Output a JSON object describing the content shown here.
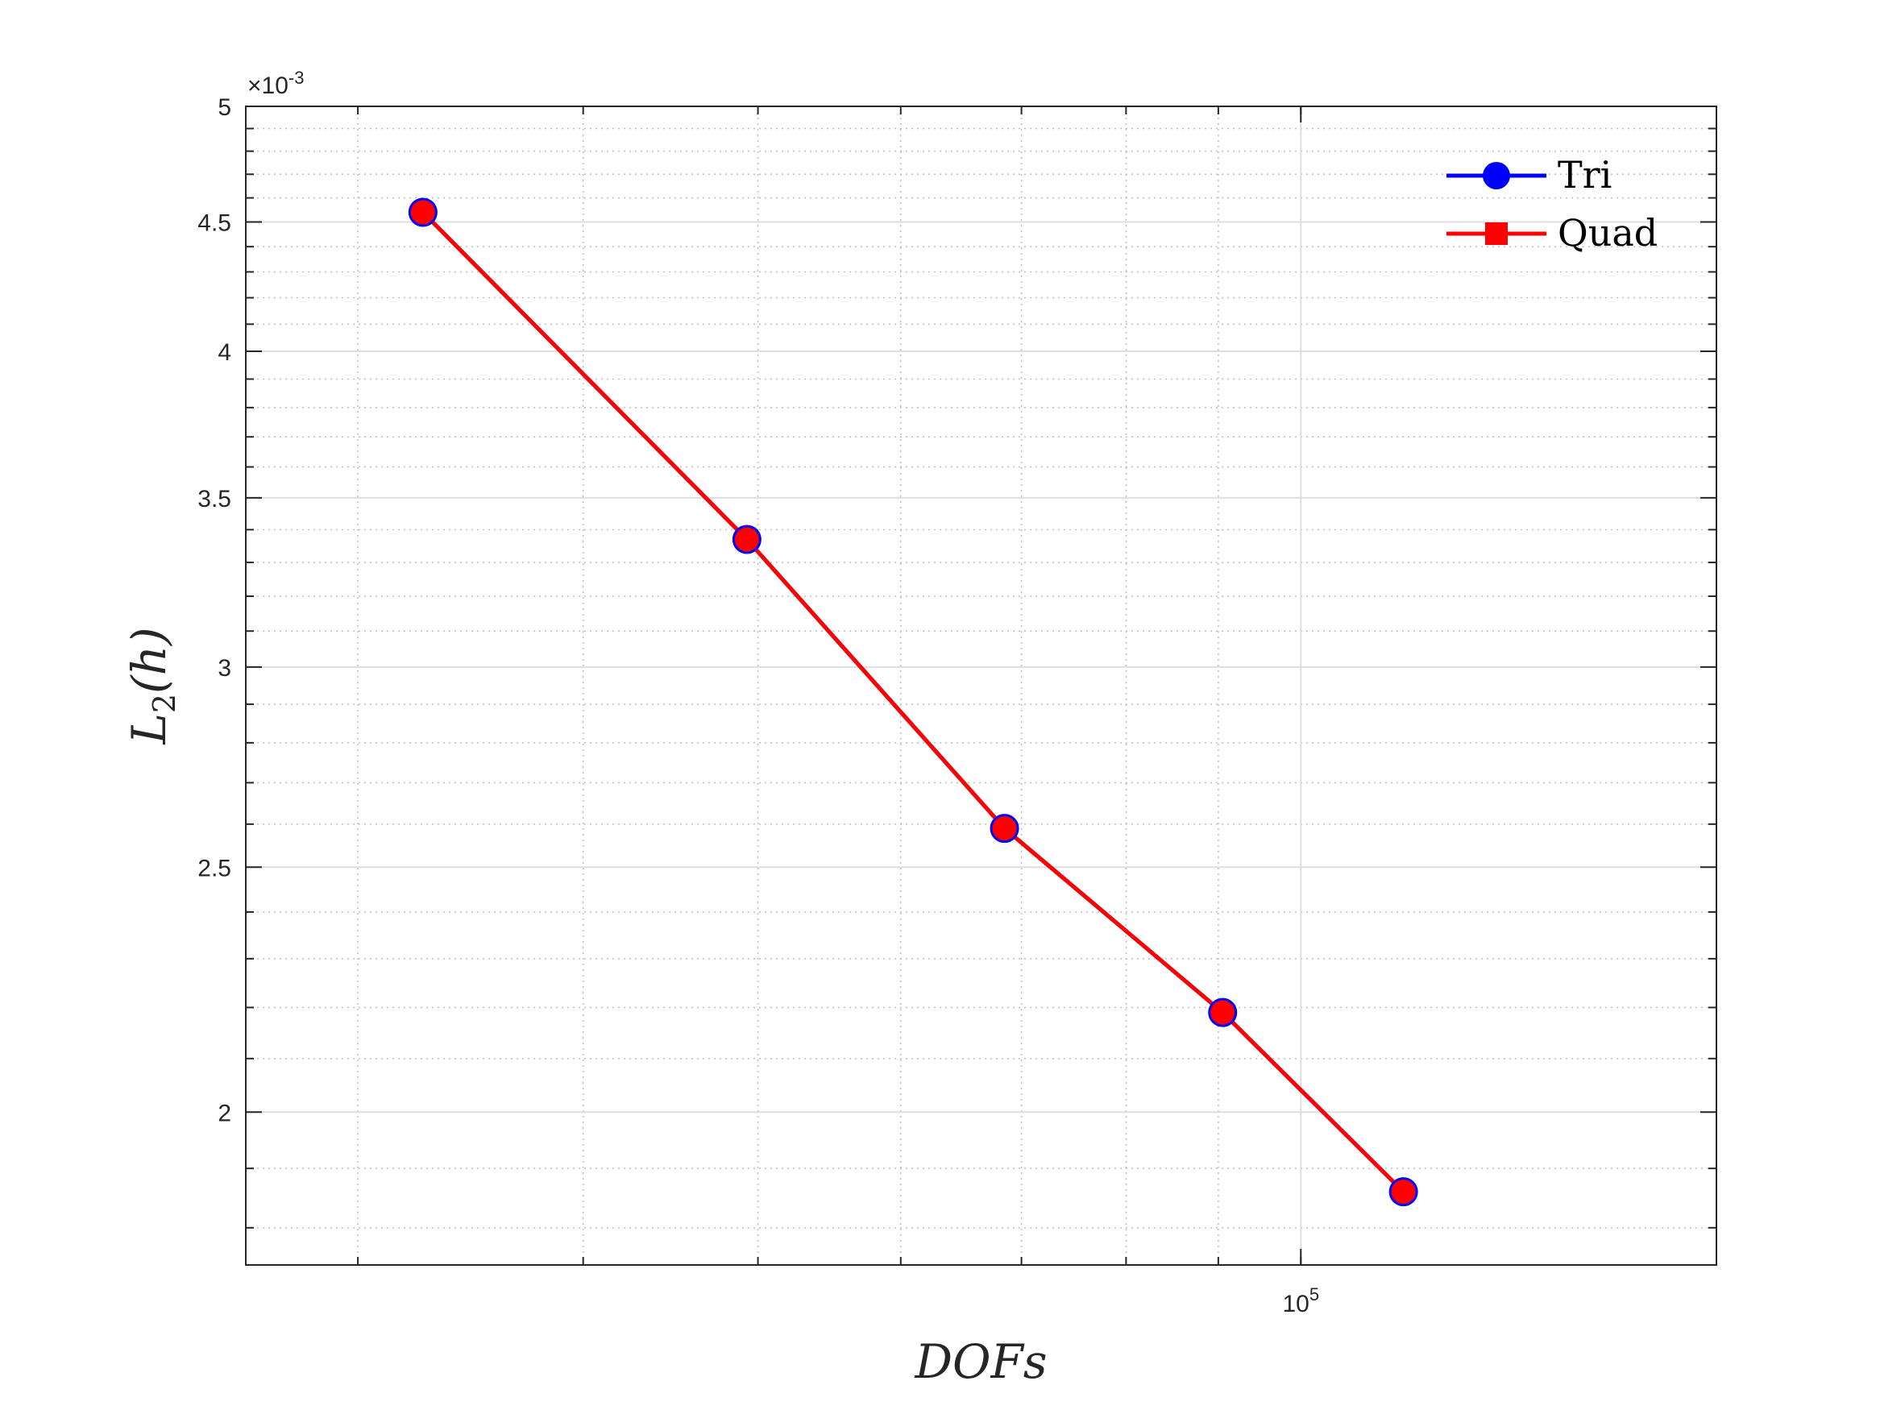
{
  "chart_data": {
    "type": "line",
    "xlabel": "DOFs",
    "ylabel_main": "L",
    "ylabel_sub": "2",
    "ylabel_tail": "(h)",
    "x_scale": "log",
    "y_scale": "log",
    "xlim": [
      26000,
      170000
    ],
    "ylim": [
      0.00174,
      0.005
    ],
    "y_exponent_label": "×10",
    "y_exponent_power": "-3",
    "x_ticks": [
      {
        "value": 100000,
        "label_base": "10",
        "label_power": "5"
      }
    ],
    "y_ticks": [
      {
        "value": 0.002,
        "label": "2"
      },
      {
        "value": 0.0025,
        "label": "2.5"
      },
      {
        "value": 0.003,
        "label": "3"
      },
      {
        "value": 0.0035,
        "label": "3.5"
      },
      {
        "value": 0.004,
        "label": "4"
      },
      {
        "value": 0.0045,
        "label": "4.5"
      },
      {
        "value": 0.005,
        "label": "5"
      }
    ],
    "grid": true,
    "minor_grid": true,
    "legend_position": "top-right",
    "series": [
      {
        "name": "Tri",
        "color": "#0000ff",
        "marker": "circle",
        "x": [
          32600,
          49300,
          68500,
          90500,
          114000
        ],
        "y": [
          0.00454,
          0.00337,
          0.00259,
          0.00219,
          0.00186
        ]
      },
      {
        "name": "Quad",
        "color": "#ff0000",
        "marker": "square",
        "x": [
          32600,
          49300,
          68500,
          90500,
          114000
        ],
        "y": [
          0.00454,
          0.00337,
          0.00259,
          0.00219,
          0.00186
        ]
      }
    ]
  }
}
